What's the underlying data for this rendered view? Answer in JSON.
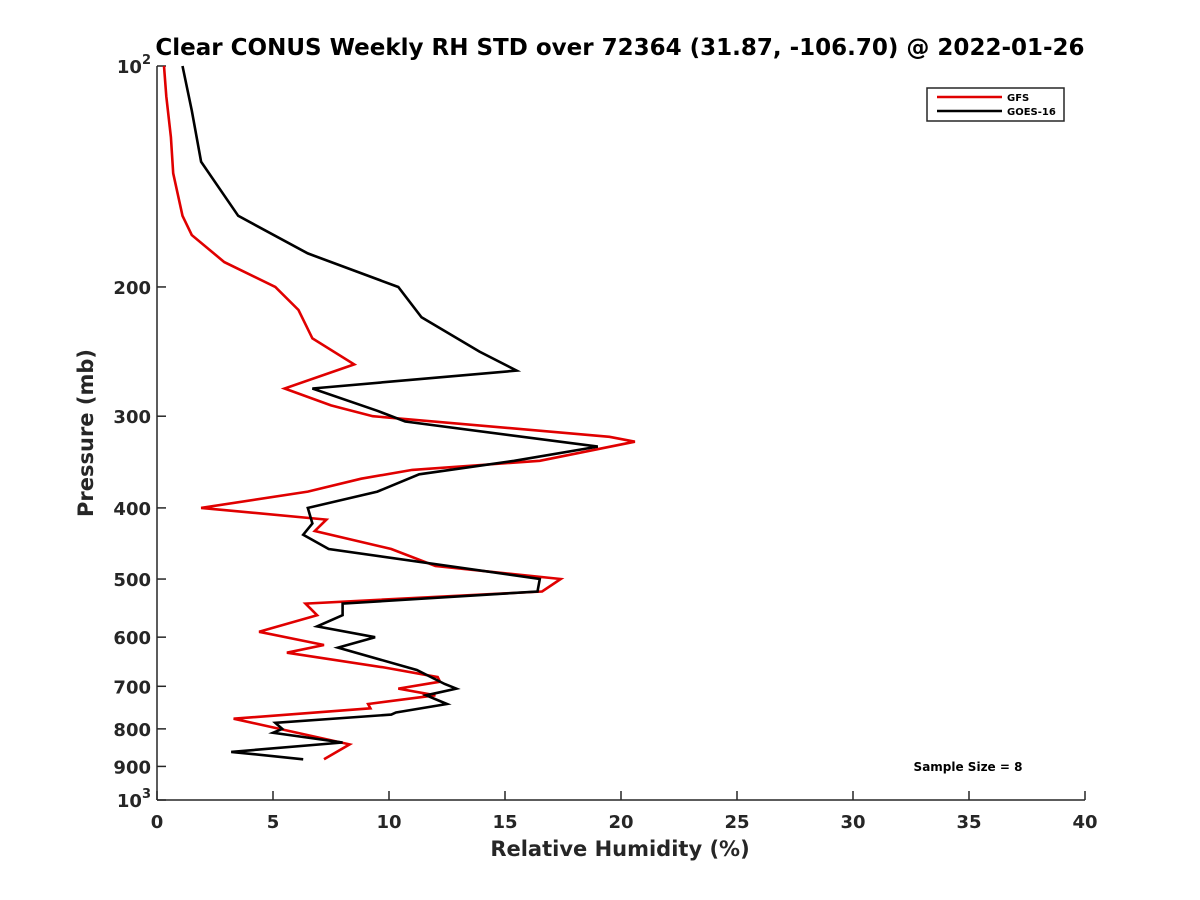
{
  "chart_data": {
    "type": "line",
    "title": "Clear CONUS Weekly RH STD over 72364 (31.87, -106.70) @ 2022-01-26",
    "xlabel": "Relative Humidity (%)",
    "ylabel": "Pressure (mb)",
    "xlim": [
      0,
      40
    ],
    "ylim": [
      100,
      1000
    ],
    "yscale": "log",
    "y_inverted": true,
    "x_ticks": [
      0,
      5,
      10,
      15,
      20,
      25,
      30,
      35,
      40
    ],
    "x_tick_labels": [
      "0",
      "5",
      "10",
      "15",
      "20",
      "25",
      "30",
      "35",
      "40"
    ],
    "y_ticks": [
      100,
      200,
      300,
      400,
      500,
      600,
      700,
      800,
      900,
      1000
    ],
    "y_tick_labels": [
      {
        "base": "10",
        "exp": "2"
      },
      {
        "text": "200"
      },
      {
        "text": "300"
      },
      {
        "text": "400"
      },
      {
        "text": "500"
      },
      {
        "text": "600"
      },
      {
        "text": "700"
      },
      {
        "text": "800"
      },
      {
        "text": "900"
      },
      {
        "base": "10",
        "exp": "3"
      }
    ],
    "grid": false,
    "legend_position": "top-right",
    "annotation": "Sample Size = 8",
    "series": [
      {
        "name": "GFS",
        "color": "#e00000",
        "points": [
          [
            0.3,
            100
          ],
          [
            0.4,
            110
          ],
          [
            0.6,
            125
          ],
          [
            0.7,
            140
          ],
          [
            1.1,
            160
          ],
          [
            1.5,
            170
          ],
          [
            2.9,
            185
          ],
          [
            5.1,
            200
          ],
          [
            6.1,
            215
          ],
          [
            6.7,
            235
          ],
          [
            8.5,
            255
          ],
          [
            5.5,
            275
          ],
          [
            7.5,
            290
          ],
          [
            9.3,
            300
          ],
          [
            19.5,
            320
          ],
          [
            20.6,
            325
          ],
          [
            16.5,
            345
          ],
          [
            11.0,
            355
          ],
          [
            8.8,
            365
          ],
          [
            6.5,
            380
          ],
          [
            1.9,
            400
          ],
          [
            7.3,
            415
          ],
          [
            6.8,
            430
          ],
          [
            10.1,
            455
          ],
          [
            12.0,
            480
          ],
          [
            17.4,
            500
          ],
          [
            16.6,
            520
          ],
          [
            6.4,
            540
          ],
          [
            6.9,
            560
          ],
          [
            4.4,
            590
          ],
          [
            7.2,
            615
          ],
          [
            5.6,
            630
          ],
          [
            9.8,
            660
          ],
          [
            12.1,
            680
          ],
          [
            12.2,
            690
          ],
          [
            10.4,
            705
          ],
          [
            12.0,
            720
          ],
          [
            9.1,
            740
          ],
          [
            9.2,
            750
          ],
          [
            3.3,
            775
          ],
          [
            8.3,
            840
          ],
          [
            7.2,
            880
          ]
        ]
      },
      {
        "name": "GOES-16",
        "color": "#000000",
        "points": [
          [
            1.1,
            100
          ],
          [
            1.5,
            115
          ],
          [
            1.9,
            135
          ],
          [
            3.5,
            160
          ],
          [
            6.5,
            180
          ],
          [
            10.4,
            200
          ],
          [
            11.4,
            220
          ],
          [
            13.9,
            245
          ],
          [
            15.5,
            260
          ],
          [
            6.7,
            275
          ],
          [
            9.5,
            295
          ],
          [
            10.7,
            305
          ],
          [
            19.0,
            330
          ],
          [
            15.4,
            345
          ],
          [
            11.3,
            360
          ],
          [
            9.5,
            380
          ],
          [
            6.5,
            400
          ],
          [
            6.7,
            420
          ],
          [
            6.3,
            435
          ],
          [
            7.4,
            455
          ],
          [
            16.5,
            500
          ],
          [
            16.4,
            520
          ],
          [
            8.0,
            540
          ],
          [
            8.0,
            560
          ],
          [
            6.9,
            580
          ],
          [
            9.4,
            600
          ],
          [
            7.8,
            620
          ],
          [
            11.2,
            665
          ],
          [
            12.4,
            695
          ],
          [
            12.9,
            705
          ],
          [
            11.6,
            720
          ],
          [
            12.5,
            740
          ],
          [
            10.3,
            760
          ],
          [
            10.1,
            765
          ],
          [
            5.1,
            785
          ],
          [
            5.4,
            800
          ],
          [
            5.0,
            810
          ],
          [
            8.0,
            835
          ],
          [
            3.2,
            860
          ],
          [
            6.3,
            880
          ]
        ]
      }
    ]
  }
}
